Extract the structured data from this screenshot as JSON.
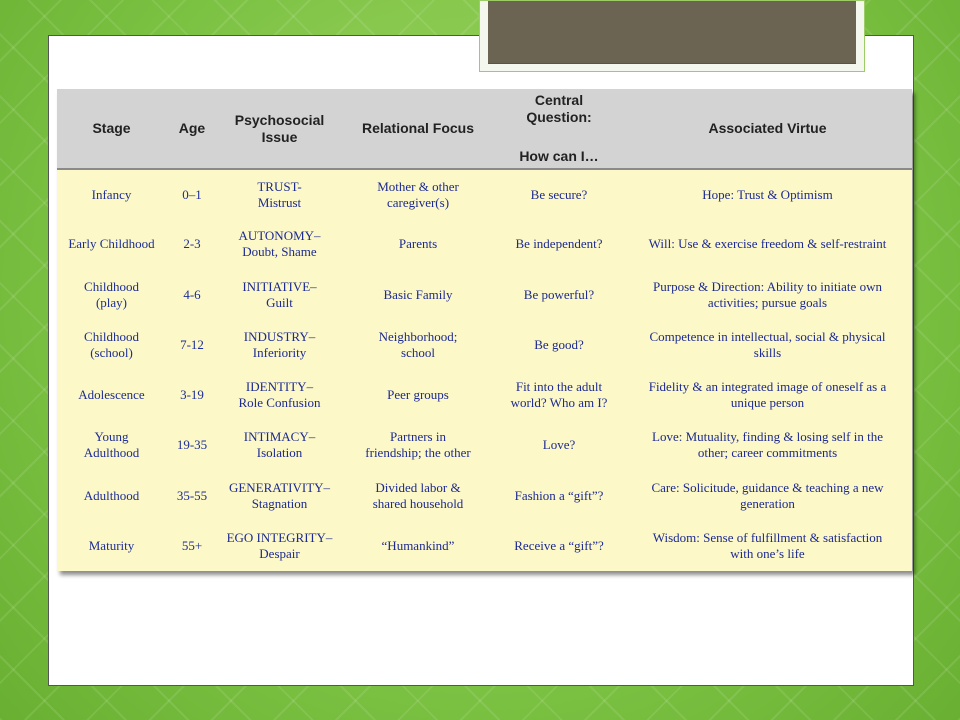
{
  "table": {
    "headers": {
      "stage": "Stage",
      "age": "Age",
      "issue_line1": "Psychosocial",
      "issue_line2": "Issue",
      "focus": "Relational Focus",
      "question_line1": "Central",
      "question_line2": "Question:",
      "question_line3": "How can I…",
      "virtue": "Associated Virtue"
    },
    "rows": [
      {
        "stage1": "Infancy",
        "stage2": "",
        "age": "0–1",
        "issue1": "TRUST-",
        "issue2": "Mistrust",
        "focus1": "Mother & other",
        "focus2": "caregiver(s)",
        "question1": "Be secure?",
        "question2": "",
        "virtue1": "Hope: Trust & Optimism",
        "virtue2": ""
      },
      {
        "stage1": "Early Childhood",
        "stage2": "",
        "age": "2-3",
        "issue1": "AUTONOMY–",
        "issue2": "Doubt, Shame",
        "focus1": "Parents",
        "focus2": "",
        "question1": "Be independent?",
        "question2": "",
        "virtue1": "Will: Use & exercise freedom & self-restraint",
        "virtue2": ""
      },
      {
        "stage1": "Childhood",
        "stage2": "(play)",
        "age": "4-6",
        "issue1": "INITIATIVE–",
        "issue2": "Guilt",
        "focus1": "Basic Family",
        "focus2": "",
        "question1": "Be powerful?",
        "question2": "",
        "virtue1": "Purpose & Direction: Ability to initiate own",
        "virtue2": "activities; pursue goals"
      },
      {
        "stage1": "Childhood",
        "stage2": "(school)",
        "age": "7-12",
        "issue1": "INDUSTRY–",
        "issue2": "Inferiority",
        "focus1": "Neighborhood;",
        "focus2": "school",
        "question1": "Be good?",
        "question2": "",
        "virtue1": "Competence in intellectual, social & physical",
        "virtue2": "skills"
      },
      {
        "stage1": "Adolescence",
        "stage2": "",
        "age": "3-19",
        "issue1": "IDENTITY–",
        "issue2": "Role Confusion",
        "focus1": "Peer groups",
        "focus2": "",
        "question1": "Fit into the adult",
        "question2": "world? Who am I?",
        "virtue1": "Fidelity & an integrated image of oneself as a",
        "virtue2": "unique person"
      },
      {
        "stage1": "Young",
        "stage2": "Adulthood",
        "age": "19-35",
        "issue1": "INTIMACY–",
        "issue2": "Isolation",
        "focus1": "Partners in",
        "focus2": "friendship; the other",
        "question1": "Love?",
        "question2": "",
        "virtue1": "Love: Mutuality, finding & losing self in the",
        "virtue2": "other; career commitments"
      },
      {
        "stage1": "Adulthood",
        "stage2": "",
        "age": "35-55",
        "issue1": "GENERATIVITY–",
        "issue2": "Stagnation",
        "focus1": "Divided labor &",
        "focus2": "shared household",
        "question1": "Fashion a “gift”?",
        "question2": "",
        "virtue1": "Care: Solicitude, guidance & teaching a new",
        "virtue2": "generation"
      },
      {
        "stage1": "Maturity",
        "stage2": "",
        "age": "55+",
        "issue1": "EGO INTEGRITY–",
        "issue2": "Despair",
        "focus1": "“Humankind”",
        "focus2": "",
        "question1": "Receive a “gift”?",
        "question2": "",
        "virtue1": "Wisdom: Sense of fulfillment & satisfaction",
        "virtue2": "with one’s life"
      }
    ]
  },
  "colors": {
    "background_green": "#7ac143",
    "header_gray": "#d3d3d3",
    "body_yellow": "#fcf8c8",
    "text_blue": "#1d2a91",
    "title_box": "#6b6453"
  }
}
